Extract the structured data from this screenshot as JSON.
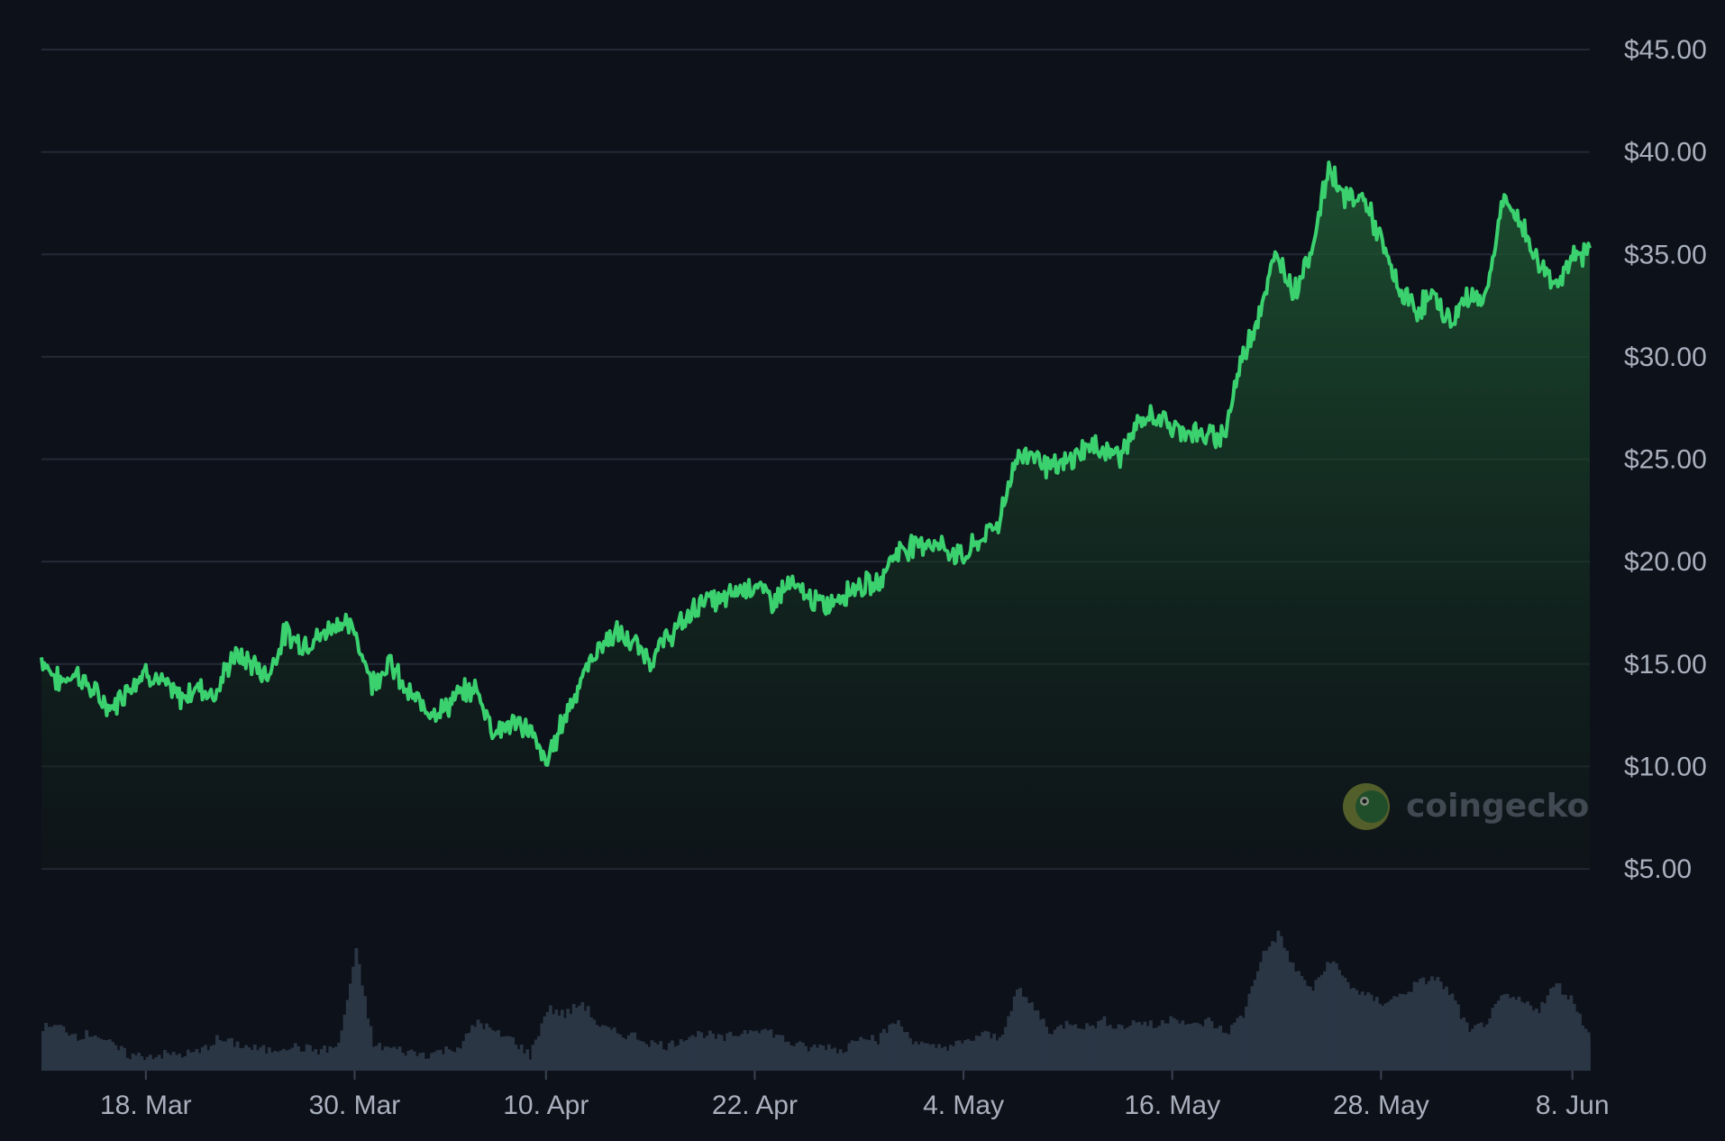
{
  "chart_data": {
    "type": "area",
    "title": "",
    "xlabel": "",
    "ylabel": "",
    "ylim": [
      5,
      45
    ],
    "y_ticks": [
      "$5.00",
      "$10.00",
      "$15.00",
      "$20.00",
      "$25.00",
      "$30.00",
      "$35.00",
      "$40.00",
      "$45.00"
    ],
    "y_tick_values": [
      5,
      10,
      15,
      20,
      25,
      30,
      35,
      40,
      45
    ],
    "x_range": [
      "2024-03-12",
      "2024-06-09"
    ],
    "x_ticks": [
      {
        "date": "2024-03-18",
        "label": "18. Mar"
      },
      {
        "date": "2024-03-30",
        "label": "30. Mar"
      },
      {
        "date": "2024-04-10",
        "label": "10. Apr"
      },
      {
        "date": "2024-04-22",
        "label": "22. Apr"
      },
      {
        "date": "2024-05-04",
        "label": "4. May"
      },
      {
        "date": "2024-05-16",
        "label": "16. May"
      },
      {
        "date": "2024-05-28",
        "label": "28. May"
      },
      {
        "date": "2024-06-08",
        "label": "8. Jun"
      }
    ],
    "grid": true,
    "line_color": "#3bd16f",
    "volume_color": "#2b3645",
    "price": [
      [
        "2024-03-12",
        15.3
      ],
      [
        "2024-03-13",
        14.1
      ],
      [
        "2024-03-14",
        14.6
      ],
      [
        "2024-03-15",
        13.6
      ],
      [
        "2024-03-16",
        12.8
      ],
      [
        "2024-03-17",
        13.9
      ],
      [
        "2024-03-18",
        14.7
      ],
      [
        "2024-03-19",
        14.0
      ],
      [
        "2024-03-20",
        13.3
      ],
      [
        "2024-03-21",
        13.9
      ],
      [
        "2024-03-22",
        13.5
      ],
      [
        "2024-03-23",
        15.4
      ],
      [
        "2024-03-24",
        15.1
      ],
      [
        "2024-03-25",
        14.4
      ],
      [
        "2024-03-26",
        16.5
      ],
      [
        "2024-03-27",
        16.0
      ],
      [
        "2024-03-28",
        16.3
      ],
      [
        "2024-03-29",
        17.1
      ],
      [
        "2024-03-30",
        16.6
      ],
      [
        "2024-03-31",
        14.1
      ],
      [
        "2024-04-01",
        15.1
      ],
      [
        "2024-04-02",
        13.6
      ],
      [
        "2024-04-03",
        12.9
      ],
      [
        "2024-04-04",
        12.7
      ],
      [
        "2024-04-05",
        13.5
      ],
      [
        "2024-04-06",
        13.8
      ],
      [
        "2024-04-07",
        11.7
      ],
      [
        "2024-04-08",
        12.1
      ],
      [
        "2024-04-09",
        11.9
      ],
      [
        "2024-04-10",
        10.1
      ],
      [
        "2024-04-11",
        12.3
      ],
      [
        "2024-04-12",
        14.2
      ],
      [
        "2024-04-13",
        15.8
      ],
      [
        "2024-04-14",
        16.5
      ],
      [
        "2024-04-15",
        16.0
      ],
      [
        "2024-04-16",
        15.2
      ],
      [
        "2024-04-17",
        16.3
      ],
      [
        "2024-04-18",
        17.1
      ],
      [
        "2024-04-19",
        18.2
      ],
      [
        "2024-04-20",
        18.0
      ],
      [
        "2024-04-21",
        18.6
      ],
      [
        "2024-04-22",
        18.9
      ],
      [
        "2024-04-23",
        18.1
      ],
      [
        "2024-04-24",
        18.9
      ],
      [
        "2024-04-25",
        18.3
      ],
      [
        "2024-04-26",
        17.8
      ],
      [
        "2024-04-27",
        18.4
      ],
      [
        "2024-04-28",
        18.9
      ],
      [
        "2024-04-29",
        18.8
      ],
      [
        "2024-04-30",
        20.4
      ],
      [
        "2024-05-01",
        20.8
      ],
      [
        "2024-05-02",
        21.0
      ],
      [
        "2024-05-03",
        20.6
      ],
      [
        "2024-05-04",
        20.2
      ],
      [
        "2024-05-05",
        21.1
      ],
      [
        "2024-05-06",
        21.9
      ],
      [
        "2024-05-07",
        25.0
      ],
      [
        "2024-05-08",
        25.4
      ],
      [
        "2024-05-09",
        24.5
      ],
      [
        "2024-05-10",
        24.8
      ],
      [
        "2024-05-11",
        25.6
      ],
      [
        "2024-05-12",
        25.5
      ],
      [
        "2024-05-13",
        25.2
      ],
      [
        "2024-05-14",
        26.6
      ],
      [
        "2024-05-15",
        27.2
      ],
      [
        "2024-05-16",
        26.5
      ],
      [
        "2024-05-17",
        26.4
      ],
      [
        "2024-05-18",
        26.0
      ],
      [
        "2024-05-19",
        26.3
      ],
      [
        "2024-05-20",
        29.9
      ],
      [
        "2024-05-21",
        32.2
      ],
      [
        "2024-05-22",
        35.0
      ],
      [
        "2024-05-23",
        33.2
      ],
      [
        "2024-05-24",
        35.2
      ],
      [
        "2024-05-25",
        39.3
      ],
      [
        "2024-05-26",
        37.7
      ],
      [
        "2024-05-27",
        37.8
      ],
      [
        "2024-05-28",
        35.6
      ],
      [
        "2024-05-29",
        33.3
      ],
      [
        "2024-05-30",
        32.3
      ],
      [
        "2024-05-31",
        33.0
      ],
      [
        "2024-06-01",
        31.6
      ],
      [
        "2024-06-02",
        33.0
      ],
      [
        "2024-06-03",
        32.8
      ],
      [
        "2024-06-04",
        37.6
      ],
      [
        "2024-06-05",
        36.6
      ],
      [
        "2024-06-06",
        34.6
      ],
      [
        "2024-06-07",
        33.6
      ],
      [
        "2024-06-08",
        34.7
      ],
      [
        "2024-06-09",
        35.3
      ]
    ],
    "volume_relative": [
      [
        "2024-03-12",
        0.35
      ],
      [
        "2024-03-13",
        0.35
      ],
      [
        "2024-03-14",
        0.28
      ],
      [
        "2024-03-15",
        0.3
      ],
      [
        "2024-03-16",
        0.2
      ],
      [
        "2024-03-17",
        0.12
      ],
      [
        "2024-03-18",
        0.12
      ],
      [
        "2024-03-19",
        0.13
      ],
      [
        "2024-03-20",
        0.13
      ],
      [
        "2024-03-21",
        0.15
      ],
      [
        "2024-03-22",
        0.25
      ],
      [
        "2024-03-23",
        0.22
      ],
      [
        "2024-03-24",
        0.18
      ],
      [
        "2024-03-25",
        0.16
      ],
      [
        "2024-03-26",
        0.2
      ],
      [
        "2024-03-27",
        0.18
      ],
      [
        "2024-03-28",
        0.16
      ],
      [
        "2024-03-29",
        0.2
      ],
      [
        "2024-03-30",
        0.95
      ],
      [
        "2024-03-31",
        0.2
      ],
      [
        "2024-04-01",
        0.18
      ],
      [
        "2024-04-02",
        0.15
      ],
      [
        "2024-04-03",
        0.13
      ],
      [
        "2024-04-04",
        0.16
      ],
      [
        "2024-04-05",
        0.2
      ],
      [
        "2024-04-06",
        0.4
      ],
      [
        "2024-04-07",
        0.3
      ],
      [
        "2024-04-08",
        0.25
      ],
      [
        "2024-04-09",
        0.12
      ],
      [
        "2024-04-10",
        0.5
      ],
      [
        "2024-04-11",
        0.45
      ],
      [
        "2024-04-12",
        0.55
      ],
      [
        "2024-04-13",
        0.35
      ],
      [
        "2024-04-14",
        0.3
      ],
      [
        "2024-04-15",
        0.28
      ],
      [
        "2024-04-16",
        0.22
      ],
      [
        "2024-04-17",
        0.2
      ],
      [
        "2024-04-18",
        0.28
      ],
      [
        "2024-04-19",
        0.3
      ],
      [
        "2024-04-20",
        0.25
      ],
      [
        "2024-04-21",
        0.3
      ],
      [
        "2024-04-22",
        0.35
      ],
      [
        "2024-04-23",
        0.3
      ],
      [
        "2024-04-24",
        0.22
      ],
      [
        "2024-04-25",
        0.18
      ],
      [
        "2024-04-26",
        0.2
      ],
      [
        "2024-04-27",
        0.16
      ],
      [
        "2024-04-28",
        0.3
      ],
      [
        "2024-04-29",
        0.25
      ],
      [
        "2024-04-30",
        0.4
      ],
      [
        "2024-05-01",
        0.25
      ],
      [
        "2024-05-02",
        0.18
      ],
      [
        "2024-05-03",
        0.2
      ],
      [
        "2024-05-04",
        0.22
      ],
      [
        "2024-05-05",
        0.3
      ],
      [
        "2024-05-06",
        0.25
      ],
      [
        "2024-05-07",
        0.65
      ],
      [
        "2024-05-08",
        0.5
      ],
      [
        "2024-05-09",
        0.3
      ],
      [
        "2024-05-10",
        0.4
      ],
      [
        "2024-05-11",
        0.35
      ],
      [
        "2024-05-12",
        0.4
      ],
      [
        "2024-05-13",
        0.35
      ],
      [
        "2024-05-14",
        0.4
      ],
      [
        "2024-05-15",
        0.35
      ],
      [
        "2024-05-16",
        0.45
      ],
      [
        "2024-05-17",
        0.35
      ],
      [
        "2024-05-18",
        0.4
      ],
      [
        "2024-05-19",
        0.3
      ],
      [
        "2024-05-20",
        0.45
      ],
      [
        "2024-05-21",
        0.9
      ],
      [
        "2024-05-22",
        1.1
      ],
      [
        "2024-05-23",
        0.8
      ],
      [
        "2024-05-24",
        0.65
      ],
      [
        "2024-05-25",
        0.9
      ],
      [
        "2024-05-26",
        0.7
      ],
      [
        "2024-05-27",
        0.6
      ],
      [
        "2024-05-28",
        0.55
      ],
      [
        "2024-05-29",
        0.6
      ],
      [
        "2024-05-30",
        0.7
      ],
      [
        "2024-05-31",
        0.75
      ],
      [
        "2024-06-01",
        0.6
      ],
      [
        "2024-06-02",
        0.3
      ],
      [
        "2024-06-03",
        0.4
      ],
      [
        "2024-06-04",
        0.6
      ],
      [
        "2024-06-05",
        0.55
      ],
      [
        "2024-06-06",
        0.5
      ],
      [
        "2024-06-07",
        0.7
      ],
      [
        "2024-06-08",
        0.55
      ],
      [
        "2024-06-09",
        0.25
      ]
    ]
  },
  "watermark": {
    "text": "coingecko",
    "logo": "gecko-logo-icon"
  }
}
